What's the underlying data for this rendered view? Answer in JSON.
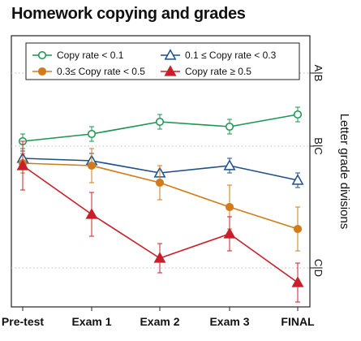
{
  "chart_data": {
    "type": "line",
    "title": "Homework copying and grades",
    "categories": [
      "Pre-test",
      "Exam 1",
      "Exam 2",
      "Exam 3",
      "FINAL"
    ],
    "ylim": [
      0,
      100
    ],
    "y2label": "Letter grade divisions",
    "y2ticks": [
      {
        "label": "A|B",
        "value": 90
      },
      {
        "label": "B|C",
        "value": 60
      },
      {
        "label": "C|D",
        "value": 10
      }
    ],
    "grid": false,
    "legend_position": "top",
    "series": [
      {
        "name": "Copy rate < 0.1",
        "color": "#1a9650",
        "marker": "circle-open",
        "values": [
          62,
          65,
          70,
          68,
          73
        ],
        "err": [
          3,
          3,
          3,
          3,
          3
        ]
      },
      {
        "name": "0.1 ≤ Copy rate < 0.3",
        "color": "#1d4f8a",
        "marker": "triangle-open",
        "values": [
          55,
          54,
          49,
          52,
          46
        ],
        "err": [
          3,
          3,
          3,
          3,
          3
        ]
      },
      {
        "name": "0.3≤ Copy rate < 0.5",
        "color": "#d27b1a",
        "marker": "circle-filled",
        "values": [
          53,
          52,
          45,
          35,
          26
        ],
        "err": [
          4,
          7,
          7,
          9,
          9
        ]
      },
      {
        "name": "Copy rate ≥ 0.5",
        "color": "#c8202a",
        "marker": "triangle-filled",
        "values": [
          52,
          32,
          14,
          24,
          4
        ],
        "err": [
          10,
          9,
          6,
          7,
          8
        ]
      }
    ]
  }
}
